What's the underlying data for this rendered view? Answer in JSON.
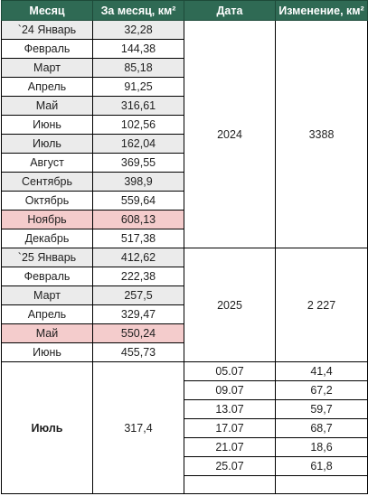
{
  "headers": [
    "Месяц",
    "За месяц, км²",
    "Дата",
    "Изменение, км²"
  ],
  "group2024": {
    "rows": [
      {
        "month": "`24 Январь",
        "value": "32,28"
      },
      {
        "month": "Февраль",
        "value": "144,38"
      },
      {
        "month": "Март",
        "value": "85,18"
      },
      {
        "month": "Апрель",
        "value": "91,25"
      },
      {
        "month": "Май",
        "value": "316,61"
      },
      {
        "month": "Июнь",
        "value": "102,56"
      },
      {
        "month": "Июль",
        "value": "162,04"
      },
      {
        "month": "Август",
        "value": "369,55"
      },
      {
        "month": "Сентябрь",
        "value": "398,9"
      },
      {
        "month": "Октябрь",
        "value": "559,64"
      },
      {
        "month": "Ноябрь",
        "value": "608,13"
      },
      {
        "month": "Декабрь",
        "value": "517,38"
      }
    ],
    "date": "2024",
    "change": "3388"
  },
  "group2025": {
    "rows": [
      {
        "month": "`25 Январь",
        "value": "412,62"
      },
      {
        "month": "Февраль",
        "value": "222,38"
      },
      {
        "month": "Март",
        "value": "257,5"
      },
      {
        "month": "Апрель",
        "value": "329,47"
      },
      {
        "month": "Май",
        "value": "550,24"
      },
      {
        "month": "Июнь",
        "value": "455,73"
      }
    ],
    "date": "2025",
    "change": "2 227"
  },
  "july": {
    "month": "Июль",
    "value": "317,4",
    "entries": [
      {
        "date": "05.07",
        "change": "41,4"
      },
      {
        "date": "09.07",
        "change": "67,2"
      },
      {
        "date": "13.07",
        "change": "59,7"
      },
      {
        "date": "17.07",
        "change": "68,7"
      },
      {
        "date": "21.07",
        "change": "18,6"
      },
      {
        "date": "25.07",
        "change": "61,8"
      }
    ]
  },
  "highlight_color": "#f4cccc",
  "header_color": "#2f6a54"
}
